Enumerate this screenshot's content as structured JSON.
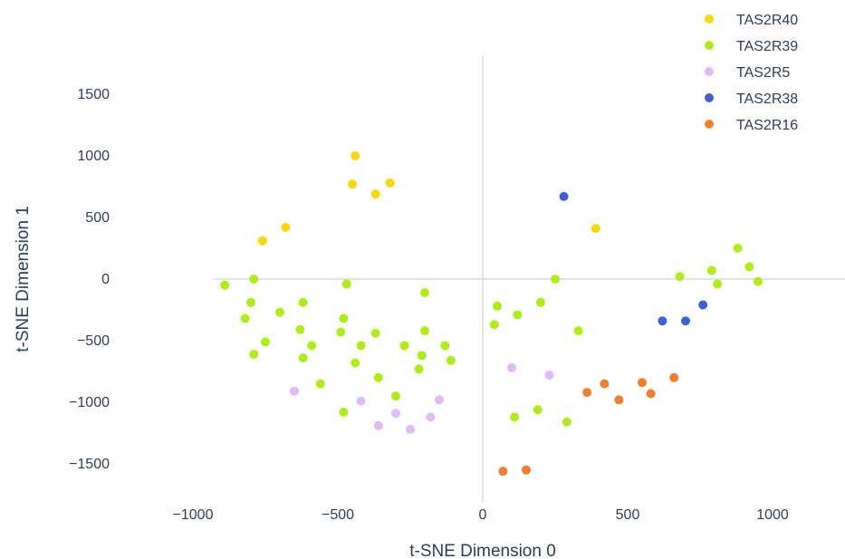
{
  "chart_data": {
    "type": "scatter",
    "xlabel": "t-SNE Dimension 0",
    "ylabel": "t-SNE Dimension 1",
    "xlim": [
      -1250,
      1250
    ],
    "ylim": [
      -1820,
      1820
    ],
    "xticks": [
      -1000,
      -500,
      0,
      500,
      1000
    ],
    "yticks": [
      -1500,
      -1000,
      -500,
      0,
      500,
      1000,
      1500
    ],
    "grid": false,
    "zero_lines": true,
    "legend_position": "top-right",
    "series": [
      {
        "name": "TAS2R40",
        "color": "#FFD700",
        "points": [
          [
            -440,
            1000
          ],
          [
            -450,
            770
          ],
          [
            -370,
            690
          ],
          [
            -320,
            780
          ],
          [
            -760,
            310
          ],
          [
            -680,
            420
          ],
          [
            390,
            410
          ]
        ]
      },
      {
        "name": "TAS2R39",
        "color": "#ADEE1A",
        "points": [
          [
            -890,
            -50
          ],
          [
            -790,
            0
          ],
          [
            -800,
            -190
          ],
          [
            -820,
            -320
          ],
          [
            -790,
            -610
          ],
          [
            -750,
            -510
          ],
          [
            -700,
            -270
          ],
          [
            -620,
            -190
          ],
          [
            -630,
            -410
          ],
          [
            -590,
            -540
          ],
          [
            -620,
            -640
          ],
          [
            -560,
            -850
          ],
          [
            -470,
            -40
          ],
          [
            -480,
            -320
          ],
          [
            -490,
            -430
          ],
          [
            -440,
            -680
          ],
          [
            -420,
            -540
          ],
          [
            -370,
            -440
          ],
          [
            -360,
            -800
          ],
          [
            -300,
            -950
          ],
          [
            -480,
            -1080
          ],
          [
            -270,
            -540
          ],
          [
            -200,
            -110
          ],
          [
            -200,
            -420
          ],
          [
            -210,
            -620
          ],
          [
            -220,
            -730
          ],
          [
            -130,
            -540
          ],
          [
            -110,
            -660
          ],
          [
            40,
            -370
          ],
          [
            50,
            -220
          ],
          [
            120,
            -290
          ],
          [
            110,
            -1120
          ],
          [
            190,
            -1060
          ],
          [
            200,
            -190
          ],
          [
            250,
            0
          ],
          [
            290,
            -1160
          ],
          [
            330,
            -420
          ],
          [
            680,
            20
          ],
          [
            790,
            70
          ],
          [
            810,
            -40
          ],
          [
            880,
            250
          ],
          [
            920,
            100
          ],
          [
            950,
            -20
          ]
        ]
      },
      {
        "name": "TAS2R5",
        "color": "#E0BBF7",
        "points": [
          [
            -650,
            -910
          ],
          [
            -420,
            -990
          ],
          [
            -360,
            -1190
          ],
          [
            -300,
            -1090
          ],
          [
            -250,
            -1220
          ],
          [
            -180,
            -1120
          ],
          [
            -150,
            -980
          ],
          [
            100,
            -720
          ],
          [
            230,
            -780
          ]
        ]
      },
      {
        "name": "TAS2R38",
        "color": "#3F5FD8",
        "points": [
          [
            280,
            670
          ],
          [
            620,
            -340
          ],
          [
            700,
            -340
          ],
          [
            760,
            -210
          ]
        ]
      },
      {
        "name": "TAS2R16",
        "color": "#F07F2F",
        "points": [
          [
            70,
            -1560
          ],
          [
            150,
            -1550
          ],
          [
            360,
            -920
          ],
          [
            420,
            -850
          ],
          [
            470,
            -980
          ],
          [
            550,
            -840
          ],
          [
            580,
            -930
          ],
          [
            660,
            -800
          ]
        ]
      }
    ]
  }
}
